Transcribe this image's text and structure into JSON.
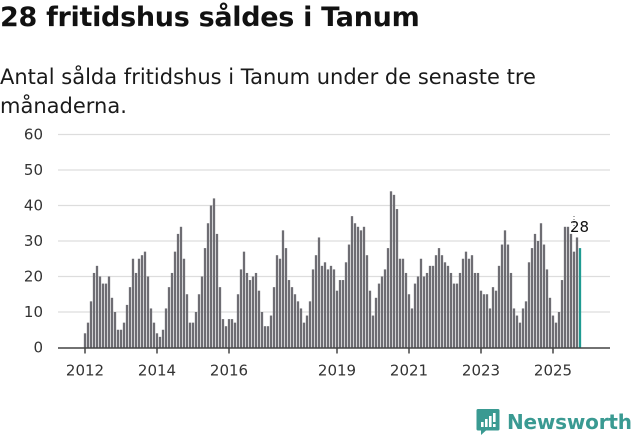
{
  "header": {
    "title": "28 fritidshus såldes i Tanum",
    "subtitle": "Antal sålda fritidshus i Tanum under de senaste tre månaderna."
  },
  "brand": {
    "name": "Newsworthy",
    "icon": "bar-chart-speech-bubble-icon",
    "color": "#3a9a92"
  },
  "colors": {
    "bar": "#6e6d73",
    "highlight": "#1f9b92",
    "grid": "#dddddd",
    "axis": "#444444"
  },
  "chart_data": {
    "type": "bar",
    "title": "28 fritidshus såldes i Tanum",
    "subtitle": "Antal sålda fritidshus i Tanum under de senaste tre månaderna.",
    "xlabel": "",
    "ylabel": "",
    "ylim": [
      0,
      60
    ],
    "yticks": [
      0,
      10,
      20,
      30,
      40,
      50,
      60
    ],
    "xtick_labels": [
      "2012",
      "2014",
      "2016",
      "2019",
      "2021",
      "2023",
      "2025"
    ],
    "xtick_month_index": [
      0,
      24,
      48,
      84,
      108,
      132,
      156
    ],
    "grid": true,
    "legend": null,
    "start": "2012-01",
    "end": "2025-10",
    "frequency": "monthly",
    "annotation": {
      "label": "28",
      "index": 165,
      "value": 28
    },
    "highlight_last": true,
    "values": [
      4,
      7,
      13,
      21,
      23,
      20,
      18,
      18,
      20,
      14,
      10,
      5,
      5,
      7,
      12,
      17,
      25,
      21,
      25,
      26,
      27,
      20,
      11,
      7,
      4,
      3,
      5,
      11,
      17,
      21,
      27,
      32,
      34,
      25,
      15,
      7,
      7,
      10,
      15,
      20,
      28,
      35,
      40,
      42,
      32,
      17,
      8,
      6,
      8,
      8,
      7,
      15,
      22,
      27,
      21,
      19,
      20,
      21,
      16,
      10,
      6,
      6,
      9,
      17,
      26,
      25,
      33,
      28,
      19,
      17,
      15,
      13,
      11,
      7,
      9,
      13,
      22,
      26,
      31,
      23,
      24,
      22,
      23,
      22,
      16,
      19,
      19,
      24,
      29,
      37,
      35,
      34,
      33,
      34,
      26,
      16,
      9,
      14,
      18,
      20,
      22,
      28,
      44,
      43,
      39,
      25,
      25,
      21,
      15,
      11,
      18,
      20,
      25,
      20,
      21,
      23,
      23,
      26,
      28,
      26,
      24,
      23,
      21,
      18,
      18,
      21,
      25,
      27,
      25,
      26,
      21,
      21,
      16,
      15,
      15,
      11,
      17,
      16,
      23,
      29,
      33,
      29,
      21,
      11,
      9,
      7,
      11,
      13,
      24,
      28,
      32,
      30,
      35,
      29,
      22,
      14,
      9,
      7,
      10,
      19,
      34,
      34,
      32,
      27,
      31,
      28
    ]
  }
}
